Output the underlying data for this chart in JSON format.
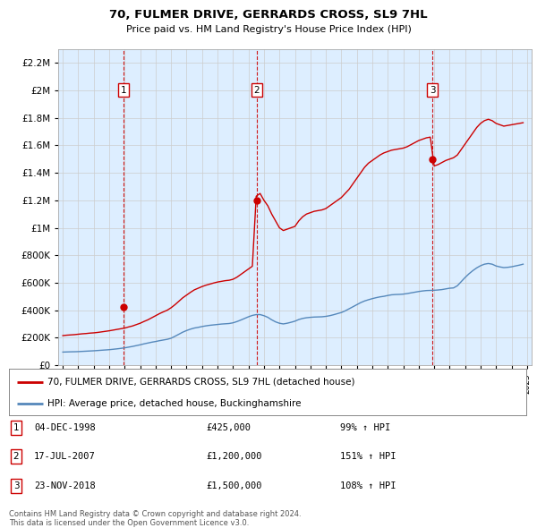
{
  "title": "70, FULMER DRIVE, GERRARDS CROSS, SL9 7HL",
  "subtitle": "Price paid vs. HM Land Registry's House Price Index (HPI)",
  "plot_bg_color": "#ddeeff",
  "ylim": [
    0,
    2300000
  ],
  "yticks": [
    0,
    200000,
    400000,
    600000,
    800000,
    1000000,
    1200000,
    1400000,
    1600000,
    1800000,
    2000000,
    2200000
  ],
  "x_start_year": 1995,
  "x_end_year": 2025,
  "red_line_color": "#cc0000",
  "blue_line_color": "#5588bb",
  "sale_points": [
    {
      "year": 1998.92,
      "price": 425000,
      "label": "1"
    },
    {
      "year": 2007.54,
      "price": 1200000,
      "label": "2"
    },
    {
      "year": 2018.9,
      "price": 1500000,
      "label": "3"
    }
  ],
  "vline_color": "#cc0000",
  "grid_color": "#cccccc",
  "legend_entries": [
    "70, FULMER DRIVE, GERRARDS CROSS, SL9 7HL (detached house)",
    "HPI: Average price, detached house, Buckinghamshire"
  ],
  "table_rows": [
    {
      "num": "1",
      "date": "04-DEC-1998",
      "price": "£425,000",
      "pct": "99% ↑ HPI"
    },
    {
      "num": "2",
      "date": "17-JUL-2007",
      "price": "£1,200,000",
      "pct": "151% ↑ HPI"
    },
    {
      "num": "3",
      "date": "23-NOV-2018",
      "price": "£1,500,000",
      "pct": "108% ↑ HPI"
    }
  ],
  "footnote": "Contains HM Land Registry data © Crown copyright and database right 2024.\nThis data is licensed under the Open Government Licence v3.0.",
  "red_hpi_data": [
    [
      1995.0,
      215000
    ],
    [
      1995.25,
      218000
    ],
    [
      1995.5,
      220000
    ],
    [
      1995.75,
      222000
    ],
    [
      1996.0,
      225000
    ],
    [
      1996.25,
      228000
    ],
    [
      1996.5,
      230000
    ],
    [
      1996.75,
      233000
    ],
    [
      1997.0,
      235000
    ],
    [
      1997.25,
      238000
    ],
    [
      1997.5,
      242000
    ],
    [
      1997.75,
      246000
    ],
    [
      1998.0,
      250000
    ],
    [
      1998.25,
      255000
    ],
    [
      1998.5,
      260000
    ],
    [
      1998.75,
      265000
    ],
    [
      1999.0,
      270000
    ],
    [
      1999.25,
      278000
    ],
    [
      1999.5,
      285000
    ],
    [
      1999.75,
      295000
    ],
    [
      2000.0,
      305000
    ],
    [
      2000.25,
      318000
    ],
    [
      2000.5,
      330000
    ],
    [
      2000.75,
      345000
    ],
    [
      2001.0,
      360000
    ],
    [
      2001.25,
      375000
    ],
    [
      2001.5,
      388000
    ],
    [
      2001.75,
      400000
    ],
    [
      2002.0,
      418000
    ],
    [
      2002.25,
      440000
    ],
    [
      2002.5,
      465000
    ],
    [
      2002.75,
      490000
    ],
    [
      2003.0,
      510000
    ],
    [
      2003.25,
      530000
    ],
    [
      2003.5,
      548000
    ],
    [
      2003.75,
      560000
    ],
    [
      2004.0,
      572000
    ],
    [
      2004.25,
      582000
    ],
    [
      2004.5,
      590000
    ],
    [
      2004.75,
      598000
    ],
    [
      2005.0,
      605000
    ],
    [
      2005.25,
      610000
    ],
    [
      2005.5,
      615000
    ],
    [
      2005.75,
      618000
    ],
    [
      2006.0,
      625000
    ],
    [
      2006.25,
      640000
    ],
    [
      2006.5,
      660000
    ],
    [
      2006.75,
      680000
    ],
    [
      2007.0,
      700000
    ],
    [
      2007.25,
      720000
    ],
    [
      2007.5,
      1230000
    ],
    [
      2007.75,
      1250000
    ],
    [
      2008.0,
      1200000
    ],
    [
      2008.25,
      1160000
    ],
    [
      2008.5,
      1100000
    ],
    [
      2008.75,
      1050000
    ],
    [
      2009.0,
      1000000
    ],
    [
      2009.25,
      980000
    ],
    [
      2009.5,
      990000
    ],
    [
      2009.75,
      1000000
    ],
    [
      2010.0,
      1010000
    ],
    [
      2010.25,
      1050000
    ],
    [
      2010.5,
      1080000
    ],
    [
      2010.75,
      1100000
    ],
    [
      2011.0,
      1110000
    ],
    [
      2011.25,
      1120000
    ],
    [
      2011.5,
      1125000
    ],
    [
      2011.75,
      1130000
    ],
    [
      2012.0,
      1140000
    ],
    [
      2012.25,
      1160000
    ],
    [
      2012.5,
      1180000
    ],
    [
      2012.75,
      1200000
    ],
    [
      2013.0,
      1220000
    ],
    [
      2013.25,
      1250000
    ],
    [
      2013.5,
      1280000
    ],
    [
      2013.75,
      1320000
    ],
    [
      2014.0,
      1360000
    ],
    [
      2014.25,
      1400000
    ],
    [
      2014.5,
      1440000
    ],
    [
      2014.75,
      1470000
    ],
    [
      2015.0,
      1490000
    ],
    [
      2015.25,
      1510000
    ],
    [
      2015.5,
      1530000
    ],
    [
      2015.75,
      1545000
    ],
    [
      2016.0,
      1555000
    ],
    [
      2016.25,
      1565000
    ],
    [
      2016.5,
      1570000
    ],
    [
      2016.75,
      1575000
    ],
    [
      2017.0,
      1580000
    ],
    [
      2017.25,
      1590000
    ],
    [
      2017.5,
      1605000
    ],
    [
      2017.75,
      1620000
    ],
    [
      2018.0,
      1635000
    ],
    [
      2018.25,
      1645000
    ],
    [
      2018.5,
      1655000
    ],
    [
      2018.75,
      1660000
    ],
    [
      2019.0,
      1450000
    ],
    [
      2019.25,
      1460000
    ],
    [
      2019.5,
      1475000
    ],
    [
      2019.75,
      1490000
    ],
    [
      2020.0,
      1500000
    ],
    [
      2020.25,
      1510000
    ],
    [
      2020.5,
      1530000
    ],
    [
      2020.75,
      1570000
    ],
    [
      2021.0,
      1610000
    ],
    [
      2021.25,
      1650000
    ],
    [
      2021.5,
      1690000
    ],
    [
      2021.75,
      1730000
    ],
    [
      2022.0,
      1760000
    ],
    [
      2022.25,
      1780000
    ],
    [
      2022.5,
      1790000
    ],
    [
      2022.75,
      1780000
    ],
    [
      2023.0,
      1760000
    ],
    [
      2023.25,
      1750000
    ],
    [
      2023.5,
      1740000
    ],
    [
      2023.75,
      1745000
    ],
    [
      2024.0,
      1750000
    ],
    [
      2024.25,
      1755000
    ],
    [
      2024.5,
      1760000
    ],
    [
      2024.75,
      1765000
    ]
  ],
  "blue_hpi_data": [
    [
      1995.0,
      95000
    ],
    [
      1995.25,
      96000
    ],
    [
      1995.5,
      97000
    ],
    [
      1995.75,
      97500
    ],
    [
      1996.0,
      98500
    ],
    [
      1996.25,
      100000
    ],
    [
      1996.5,
      101500
    ],
    [
      1996.75,
      103000
    ],
    [
      1997.0,
      104500
    ],
    [
      1997.25,
      106500
    ],
    [
      1997.5,
      108500
    ],
    [
      1997.75,
      110500
    ],
    [
      1998.0,
      112500
    ],
    [
      1998.25,
      115500
    ],
    [
      1998.5,
      118500
    ],
    [
      1998.75,
      122000
    ],
    [
      1999.0,
      126000
    ],
    [
      1999.25,
      131000
    ],
    [
      1999.5,
      136000
    ],
    [
      1999.75,
      142000
    ],
    [
      2000.0,
      148000
    ],
    [
      2000.25,
      155000
    ],
    [
      2000.5,
      161000
    ],
    [
      2000.75,
      167000
    ],
    [
      2001.0,
      172000
    ],
    [
      2001.25,
      178000
    ],
    [
      2001.5,
      183000
    ],
    [
      2001.75,
      188000
    ],
    [
      2002.0,
      196000
    ],
    [
      2002.25,
      210000
    ],
    [
      2002.5,
      225000
    ],
    [
      2002.75,
      240000
    ],
    [
      2003.0,
      252000
    ],
    [
      2003.25,
      262000
    ],
    [
      2003.5,
      270000
    ],
    [
      2003.75,
      275000
    ],
    [
      2004.0,
      281000
    ],
    [
      2004.25,
      286000
    ],
    [
      2004.5,
      290000
    ],
    [
      2004.75,
      293000
    ],
    [
      2005.0,
      296000
    ],
    [
      2005.25,
      299000
    ],
    [
      2005.5,
      301000
    ],
    [
      2005.75,
      303000
    ],
    [
      2006.0,
      308000
    ],
    [
      2006.25,
      317000
    ],
    [
      2006.5,
      328000
    ],
    [
      2006.75,
      340000
    ],
    [
      2007.0,
      352000
    ],
    [
      2007.25,
      362000
    ],
    [
      2007.5,
      368000
    ],
    [
      2007.75,
      368000
    ],
    [
      2008.0,
      360000
    ],
    [
      2008.25,
      348000
    ],
    [
      2008.5,
      330000
    ],
    [
      2008.75,
      315000
    ],
    [
      2009.0,
      305000
    ],
    [
      2009.25,
      300000
    ],
    [
      2009.5,
      305000
    ],
    [
      2009.75,
      312000
    ],
    [
      2010.0,
      320000
    ],
    [
      2010.25,
      332000
    ],
    [
      2010.5,
      340000
    ],
    [
      2010.75,
      345000
    ],
    [
      2011.0,
      348000
    ],
    [
      2011.25,
      350000
    ],
    [
      2011.5,
      351000
    ],
    [
      2011.75,
      352000
    ],
    [
      2012.0,
      355000
    ],
    [
      2012.25,
      360000
    ],
    [
      2012.5,
      367000
    ],
    [
      2012.75,
      375000
    ],
    [
      2013.0,
      383000
    ],
    [
      2013.25,
      395000
    ],
    [
      2013.5,
      410000
    ],
    [
      2013.75,
      425000
    ],
    [
      2014.0,
      440000
    ],
    [
      2014.25,
      455000
    ],
    [
      2014.5,
      467000
    ],
    [
      2014.75,
      476000
    ],
    [
      2015.0,
      484000
    ],
    [
      2015.25,
      491000
    ],
    [
      2015.5,
      497000
    ],
    [
      2015.75,
      501000
    ],
    [
      2016.0,
      507000
    ],
    [
      2016.25,
      512000
    ],
    [
      2016.5,
      514000
    ],
    [
      2016.75,
      515000
    ],
    [
      2017.0,
      517000
    ],
    [
      2017.25,
      521000
    ],
    [
      2017.5,
      526000
    ],
    [
      2017.75,
      531000
    ],
    [
      2018.0,
      536000
    ],
    [
      2018.25,
      540000
    ],
    [
      2018.5,
      543000
    ],
    [
      2018.75,
      544000
    ],
    [
      2019.0,
      545000
    ],
    [
      2019.25,
      547000
    ],
    [
      2019.5,
      550000
    ],
    [
      2019.75,
      555000
    ],
    [
      2020.0,
      560000
    ],
    [
      2020.25,
      562000
    ],
    [
      2020.5,
      578000
    ],
    [
      2020.75,
      608000
    ],
    [
      2021.0,
      638000
    ],
    [
      2021.25,
      665000
    ],
    [
      2021.5,
      688000
    ],
    [
      2021.75,
      708000
    ],
    [
      2022.0,
      724000
    ],
    [
      2022.25,
      735000
    ],
    [
      2022.5,
      740000
    ],
    [
      2022.75,
      735000
    ],
    [
      2023.0,
      722000
    ],
    [
      2023.25,
      715000
    ],
    [
      2023.5,
      710000
    ],
    [
      2023.75,
      712000
    ],
    [
      2024.0,
      716000
    ],
    [
      2024.25,
      722000
    ],
    [
      2024.5,
      728000
    ],
    [
      2024.75,
      735000
    ]
  ]
}
